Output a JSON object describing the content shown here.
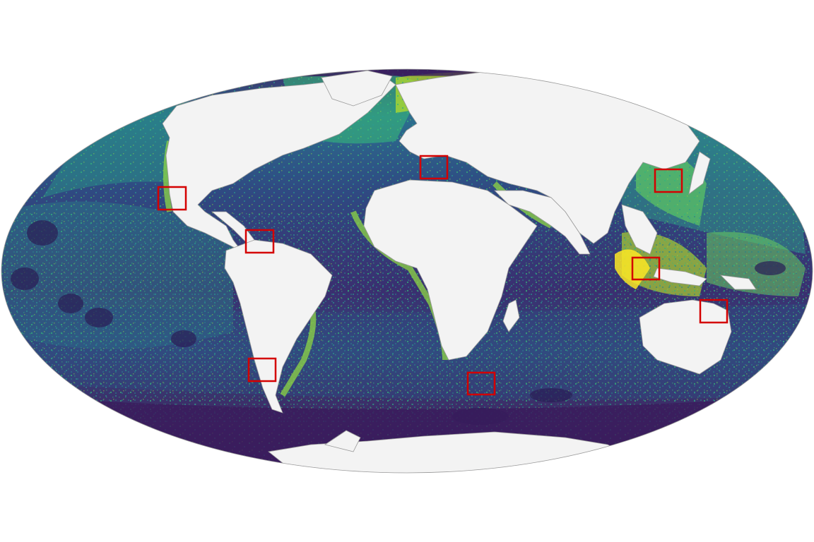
{
  "map": {
    "projection": "mollweide",
    "colors": {
      "background": "#ffffff",
      "land": "#f3f3f3",
      "land_edge": "#9a9a9a",
      "ocean_deep": "#3b2a68",
      "ocean_mid": "#31487e",
      "ocean_teal": "#2a7f8a",
      "ocean_green": "#35b779",
      "ocean_light": "#8fd744",
      "ocean_yellow": "#fde725",
      "highlight_box": "#d40000"
    },
    "colormap": "viridis",
    "highlight_regions": [
      {
        "id": "baja-california"
      },
      {
        "id": "caribbean"
      },
      {
        "id": "mediterranean"
      },
      {
        "id": "japan-east-china-sea"
      },
      {
        "id": "south-china-sea"
      },
      {
        "id": "great-barrier-reef"
      },
      {
        "id": "chile"
      },
      {
        "id": "southern-ocean-south-africa"
      }
    ]
  }
}
